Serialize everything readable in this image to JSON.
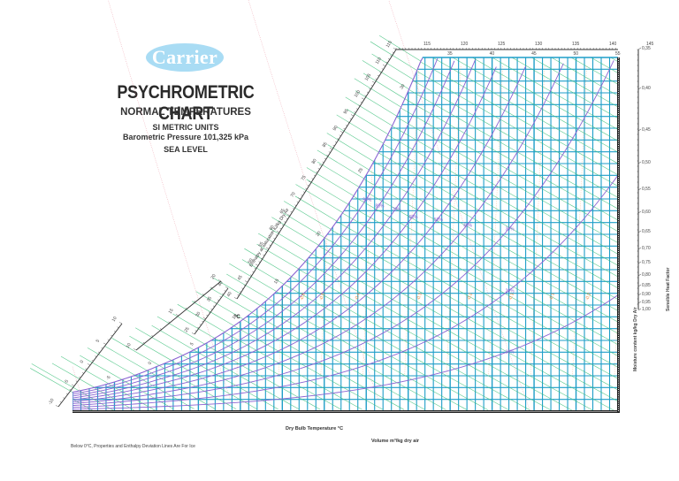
{
  "header": {
    "brand": "Carrier",
    "title": "PSYCHROMETRIC CHART",
    "subtitle": "NORMAL TEMPERATURES",
    "units": "SI METRIC  UNITS",
    "pressure": "Barometric Pressure 101,325 kPa",
    "elevation": "SEA LEVEL"
  },
  "labels": {
    "x_axis": "Dry Bulb Temperature   °C",
    "volume": "Volume m³/kg dry air",
    "footnote": "Below 0°C,  Properties and Enthalpy Deviation Lines Are For Ice",
    "y_axis": "Moisture content  kg/kg Dry Air",
    "shf": "Sensible Heat Factor",
    "enthalpy_scale": "Enthalpy at saturation  kJ/kg Dry Air",
    "deg_c": "°C"
  },
  "colors": {
    "grid": "#1e9ec8",
    "enthalpy": "#3cc07a",
    "rh": "#8a63d2",
    "deviation": "#f0883a",
    "axis": "#333333",
    "logo": "#a9dcf4"
  },
  "chart_data": {
    "type": "line",
    "title": "PSYCHROMETRIC CHART",
    "xlabel": "Dry Bulb Temperature °C",
    "ylabel": "Moisture content kg/kg Dry Air",
    "xlim": [
      -10,
      55
    ],
    "ylim": [
      0,
      0.03
    ],
    "top_dry_bulb_ticks": [
      35,
      40,
      45,
      50,
      55
    ],
    "top_enthalpy_ticks": [
      115,
      120,
      125,
      130,
      135,
      140,
      145
    ],
    "enthalpy_scale_upper_ticks": [
      40,
      45,
      50,
      55,
      60,
      65,
      70,
      75,
      80,
      85,
      90,
      95,
      100,
      105,
      110,
      115
    ],
    "enthalpy_scale_mid_ticks": [
      10,
      15,
      20,
      25,
      30,
      35,
      40
    ],
    "enthalpy_scale_low_ticks": [
      -10,
      -5,
      0,
      5,
      10
    ],
    "saturation_temp_labels": [
      -5,
      0,
      5,
      10,
      15,
      20,
      25,
      30
    ],
    "relative_humidity_percent": [
      90,
      80,
      70,
      60,
      50,
      40,
      30,
      20,
      10
    ],
    "shf_scale": [
      0.35,
      0.4,
      0.45,
      0.5,
      0.55,
      0.6,
      0.65,
      0.7,
      0.75,
      0.8,
      0.85,
      0.9,
      0.95,
      1.0
    ],
    "enthalpy_deviation_labels": [
      "-0.6",
      "-0.5",
      "-0.4",
      "-0.3",
      "-0.2",
      "-0.1",
      "-0.1",
      "-0.2"
    ],
    "grid": true
  }
}
